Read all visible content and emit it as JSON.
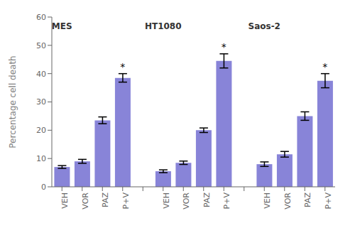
{
  "chart_data": {
    "type": "bar",
    "ylabel": "Percentage cell death",
    "ylim": [
      0,
      60
    ],
    "yticks": [
      0,
      10,
      20,
      30,
      40,
      50,
      60
    ],
    "color": "#8884d8",
    "groups": [
      {
        "label": "MES",
        "categories": [
          "VEH",
          "VOR",
          "PAZ",
          "P+V"
        ],
        "values": [
          7.0,
          9.0,
          23.5,
          38.5
        ],
        "errors": [
          0.5,
          0.7,
          1.2,
          1.5
        ],
        "annotations": [
          null,
          null,
          null,
          "*"
        ]
      },
      {
        "label": "HT1080",
        "categories": [
          "VEH",
          "VOR",
          "PAZ",
          "P+V"
        ],
        "values": [
          5.5,
          8.5,
          20.0,
          44.5
        ],
        "errors": [
          0.5,
          0.6,
          0.8,
          2.5
        ],
        "annotations": [
          null,
          null,
          null,
          "*"
        ]
      },
      {
        "label": "Saos-2",
        "categories": [
          "VEH",
          "VOR",
          "PAZ",
          "P+V"
        ],
        "values": [
          8.0,
          11.5,
          25.0,
          37.5
        ],
        "errors": [
          0.8,
          1.0,
          1.5,
          2.5
        ],
        "annotations": [
          null,
          null,
          null,
          "*"
        ]
      }
    ]
  }
}
